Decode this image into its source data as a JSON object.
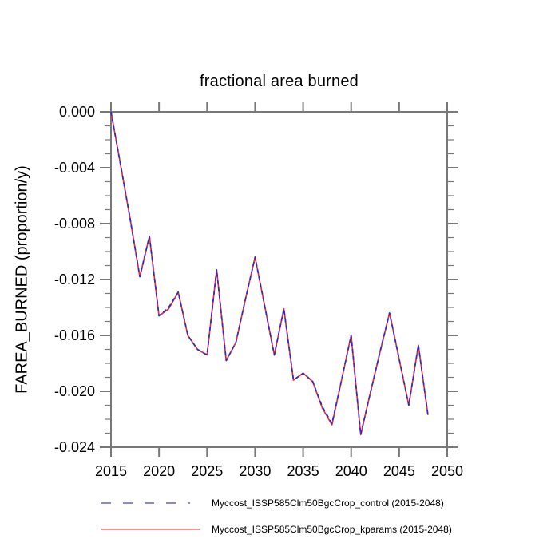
{
  "title": "fractional area burned",
  "y_axis_label": "FAREA_BURNED  (proportion/y)",
  "colors": {
    "axis": "#787878",
    "text": "#000000",
    "control_line": "#2b2bcc",
    "kparams_line": "#e03030",
    "background": "#ffffff"
  },
  "legend": [
    {
      "label": "Myccost_ISSP585Clm50BgcCrop_control (2015-2048)",
      "color": "#5c5cf0",
      "dashed": true
    },
    {
      "label": "Myccost_ISSP585Clm50BgcCrop_kparams (2015-2048)",
      "color": "#f07070",
      "dashed": false
    }
  ],
  "chart_data": {
    "type": "line",
    "title": "fractional area burned",
    "xlabel": "",
    "ylabel": "FAREA_BURNED  (proportion/y)",
    "xlim": [
      2015,
      2050
    ],
    "ylim": [
      -0.024,
      0
    ],
    "grid": false,
    "legend_position": "bottom",
    "x_ticks": [
      2015,
      2020,
      2025,
      2030,
      2035,
      2040,
      2045,
      2050
    ],
    "x_tick_labels": [
      "2015",
      "2020",
      "2025",
      "2030",
      "2035",
      "2040",
      "2045",
      "2050"
    ],
    "y_ticks": [
      0,
      -0.004,
      -0.008,
      -0.012,
      -0.016,
      -0.02,
      -0.024
    ],
    "y_tick_labels": [
      "0.000",
      "-0.004",
      "-0.008",
      "-0.012",
      "-0.016",
      "-0.020",
      "-0.024"
    ],
    "y_minor_step": 0.001,
    "x": [
      2015,
      2016,
      2017,
      2018,
      2019,
      2020,
      2021,
      2022,
      2023,
      2024,
      2025,
      2026,
      2027,
      2028,
      2029,
      2030,
      2031,
      2032,
      2033,
      2034,
      2035,
      2036,
      2037,
      2038,
      2039,
      2040,
      2041,
      2042,
      2043,
      2044,
      2045,
      2046,
      2047,
      2048
    ],
    "series": [
      {
        "name": "Myccost_ISSP585Clm50BgcCrop_control",
        "style": "dashed",
        "color": "#2b2bcc",
        "values": [
          0.0,
          -0.0038,
          -0.0077,
          -0.0118,
          -0.0089,
          -0.0146,
          -0.014,
          -0.0129,
          -0.016,
          -0.017,
          -0.0174,
          -0.0113,
          -0.0178,
          -0.0165,
          -0.0134,
          -0.0104,
          -0.0139,
          -0.0174,
          -0.0141,
          -0.0192,
          -0.0187,
          -0.0193,
          -0.0211,
          -0.0223,
          -0.0192,
          -0.016,
          -0.0231,
          -0.0201,
          -0.0172,
          -0.0144,
          -0.0177,
          -0.021,
          -0.0167,
          -0.0217
        ]
      },
      {
        "name": "Myccost_ISSP585Clm50BgcCrop_kparams",
        "style": "solid",
        "color": "#e03030",
        "values": [
          0.0,
          -0.0038,
          -0.0077,
          -0.0118,
          -0.0089,
          -0.0146,
          -0.0141,
          -0.0129,
          -0.016,
          -0.017,
          -0.0174,
          -0.0113,
          -0.0178,
          -0.0165,
          -0.0134,
          -0.0104,
          -0.0139,
          -0.0174,
          -0.0141,
          -0.0192,
          -0.0187,
          -0.0193,
          -0.0212,
          -0.0224,
          -0.0192,
          -0.016,
          -0.0231,
          -0.0201,
          -0.0172,
          -0.0144,
          -0.0177,
          -0.021,
          -0.0167,
          -0.0217
        ]
      }
    ]
  }
}
